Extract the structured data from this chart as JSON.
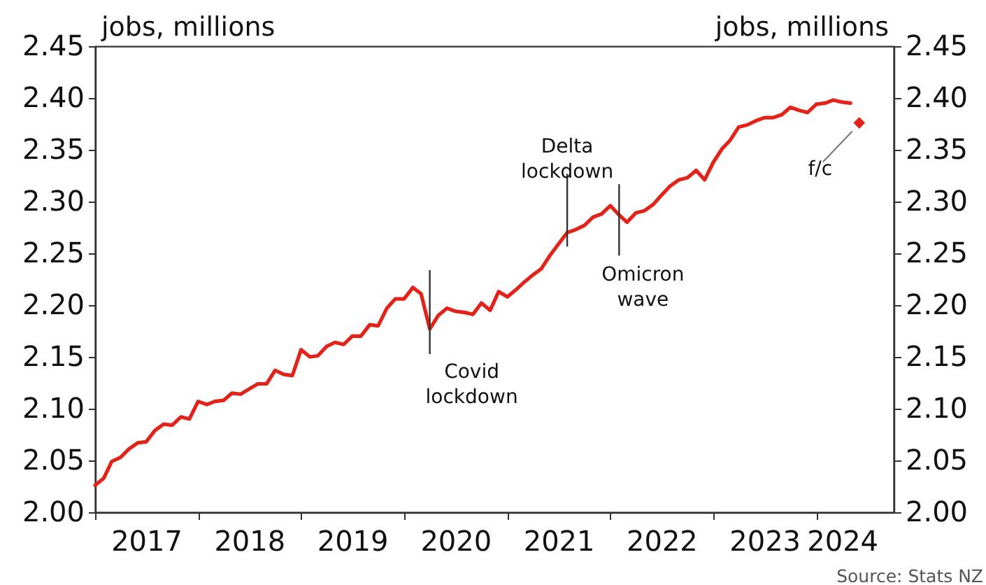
{
  "chart_data": {
    "type": "line",
    "ylabel": "jobs, millions",
    "y2label": "jobs, millions",
    "x": [
      "2017-01",
      "2017-02",
      "2017-03",
      "2017-04",
      "2017-05",
      "2017-06",
      "2017-07",
      "2017-08",
      "2017-09",
      "2017-10",
      "2017-11",
      "2017-12",
      "2018-01",
      "2018-02",
      "2018-03",
      "2018-04",
      "2018-05",
      "2018-06",
      "2018-07",
      "2018-08",
      "2018-09",
      "2018-10",
      "2018-11",
      "2018-12",
      "2019-01",
      "2019-02",
      "2019-03",
      "2019-04",
      "2019-05",
      "2019-06",
      "2019-07",
      "2019-08",
      "2019-09",
      "2019-10",
      "2019-11",
      "2019-12",
      "2020-01",
      "2020-02",
      "2020-03",
      "2020-04",
      "2020-05",
      "2020-06",
      "2020-07",
      "2020-08",
      "2020-09",
      "2020-10",
      "2020-11",
      "2020-12",
      "2021-01",
      "2021-02",
      "2021-03",
      "2021-04",
      "2021-05",
      "2021-06",
      "2021-07",
      "2021-08",
      "2021-09",
      "2021-10",
      "2021-11",
      "2021-12",
      "2022-01",
      "2022-02",
      "2022-03",
      "2022-04",
      "2022-05",
      "2022-06",
      "2022-07",
      "2022-08",
      "2022-09",
      "2022-10",
      "2022-11",
      "2022-12",
      "2023-01",
      "2023-02",
      "2023-03",
      "2023-04",
      "2023-05",
      "2023-06",
      "2023-07",
      "2023-08",
      "2023-09",
      "2023-10",
      "2023-11",
      "2023-12",
      "2024-01",
      "2024-02",
      "2024-03",
      "2024-04",
      "2024-05"
    ],
    "series": [
      {
        "color": "#e2231a",
        "marker": "none",
        "line_style": "solid",
        "values": [
          2.026,
          2.033,
          2.049,
          2.053,
          2.061,
          2.067,
          2.068,
          2.079,
          2.085,
          2.084,
          2.092,
          2.09,
          2.107,
          2.104,
          2.107,
          2.108,
          2.115,
          2.114,
          2.119,
          2.124,
          2.124,
          2.137,
          2.133,
          2.132,
          2.157,
          2.15,
          2.151,
          2.16,
          2.164,
          2.162,
          2.17,
          2.17,
          2.181,
          2.18,
          2.197,
          2.206,
          2.206,
          2.217,
          2.211,
          2.177,
          2.19,
          2.197,
          2.194,
          2.193,
          2.191,
          2.202,
          2.195,
          2.213,
          2.208,
          2.215,
          2.222,
          2.229,
          2.235,
          2.248,
          2.259,
          2.27,
          2.273,
          2.277,
          2.285,
          2.288,
          2.296,
          2.287,
          2.28,
          2.289,
          2.291,
          2.297,
          2.306,
          2.315,
          2.321,
          2.323,
          2.33,
          2.321,
          2.338,
          2.351,
          2.359,
          2.372,
          2.374,
          2.378,
          2.381,
          2.381,
          2.384,
          2.391,
          2.388,
          2.386,
          2.394,
          2.395,
          2.398,
          2.396,
          2.395
        ]
      },
      {
        "type": "scatter",
        "marker": "diamond",
        "color": "#e2231a",
        "x": [
          "2024-06"
        ],
        "values": [
          2.376
        ]
      }
    ],
    "xlim": [
      "2017-01",
      "2024-10"
    ],
    "xticks": [
      {
        "value": "2017",
        "label": null
      },
      {
        "value": "2018",
        "label": null
      },
      {
        "value": "2019",
        "label": null
      },
      {
        "value": "2020",
        "label": null
      },
      {
        "value": "2021",
        "label": null
      },
      {
        "value": "2022",
        "label": null
      },
      {
        "value": "2023",
        "label": null
      },
      {
        "value": "2024",
        "label": null
      },
      {
        "value": "2017-07",
        "label": "2017"
      },
      {
        "value": "2018-07",
        "label": "2018"
      },
      {
        "value": "2019-07",
        "label": "2019"
      },
      {
        "value": "2020-07",
        "label": "2020"
      },
      {
        "value": "2021-07",
        "label": "2021"
      },
      {
        "value": "2022-07",
        "label": "2022"
      },
      {
        "value": "2023-07",
        "label": "2023"
      },
      {
        "value": "2024-04",
        "label": "2024"
      }
    ],
    "ylim": [
      2.0,
      2.45
    ],
    "yticks": [
      {
        "value": 2.0,
        "label": "2.00"
      },
      {
        "value": 2.05,
        "label": "2.05"
      },
      {
        "value": 2.1,
        "label": "2.10"
      },
      {
        "value": 2.15,
        "label": "2.15"
      },
      {
        "value": 2.2,
        "label": "2.20"
      },
      {
        "value": 2.25,
        "label": "2.25"
      },
      {
        "value": 2.3,
        "label": "2.30"
      },
      {
        "value": 2.35,
        "label": "2.35"
      },
      {
        "value": 2.4,
        "label": "2.40"
      },
      {
        "value": 2.45,
        "label": "2.45"
      }
    ],
    "y2lim": [
      2.0,
      2.45
    ],
    "y2ticks": [
      {
        "value": 2.0,
        "label": "2.00"
      },
      {
        "value": 2.05,
        "label": "2.05"
      },
      {
        "value": 2.1,
        "label": "2.10"
      },
      {
        "value": 2.15,
        "label": "2.15"
      },
      {
        "value": 2.2,
        "label": "2.20"
      },
      {
        "value": 2.25,
        "label": "2.25"
      },
      {
        "value": 2.3,
        "label": "2.30"
      },
      {
        "value": 2.35,
        "label": "2.35"
      },
      {
        "value": 2.4,
        "label": "2.40"
      },
      {
        "value": 2.45,
        "label": "2.45"
      }
    ],
    "grid": false,
    "annotations": [
      {
        "text": "Covid lockdown",
        "x": "2020-04",
        "y": 2.177
      },
      {
        "text": "Delta lockdown",
        "x": "2021-08",
        "y": 2.27
      },
      {
        "text": "Omicron wave",
        "x": "2022-02",
        "y": 2.287
      },
      {
        "text": "f/c",
        "x": "2024-06",
        "y": 2.376
      },
      "Source: Stats NZ"
    ]
  }
}
